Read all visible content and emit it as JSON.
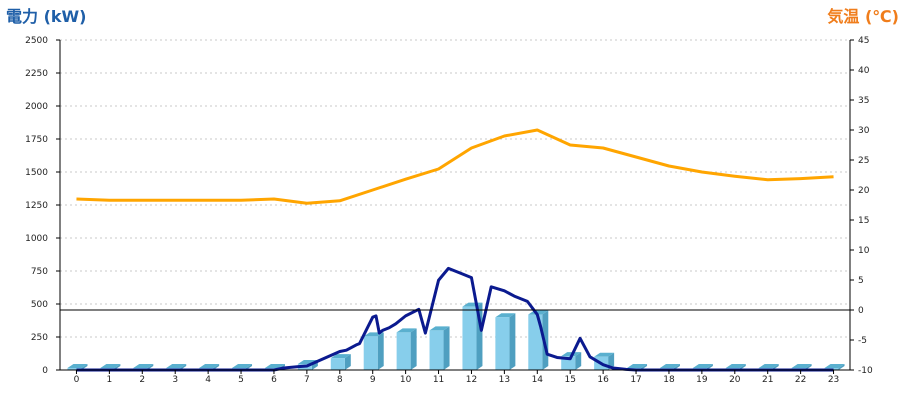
{
  "chart_data": {
    "type": "bar+line",
    "left_axis": {
      "title": "電力 (kW)",
      "color": "#1f5fa8",
      "range": [
        0,
        2500
      ],
      "ticks": [
        "0",
        "250",
        "500",
        "750",
        "1000",
        "1250",
        "1500",
        "1750",
        "2000",
        "2250",
        "2500"
      ]
    },
    "right_axis": {
      "title": "気温 (℃)",
      "color": "#f07d1b",
      "range": [
        -10,
        45
      ],
      "ticks": [
        "-10",
        "-5",
        "0",
        "5",
        "10",
        "15",
        "20",
        "25",
        "30",
        "35",
        "40",
        "45"
      ]
    },
    "x_axis": {
      "range": [
        -0.5,
        23.5
      ],
      "ticks": [
        "0",
        "1",
        "2",
        "3",
        "4",
        "5",
        "6",
        "7",
        "8",
        "9",
        "10",
        "11",
        "12",
        "13",
        "14",
        "15",
        "16",
        "17",
        "18",
        "19",
        "20",
        "21",
        "22",
        "23"
      ]
    },
    "grid": "horizontal dashed",
    "bars": {
      "axis": "left",
      "color": "#87ceeb",
      "categories": [
        "0",
        "1",
        "2",
        "3",
        "4",
        "5",
        "6",
        "7",
        "8",
        "9",
        "10",
        "11",
        "12",
        "13",
        "14",
        "15",
        "16",
        "17",
        "18",
        "19",
        "20",
        "21",
        "22",
        "23"
      ],
      "values": [
        0,
        0,
        0,
        0,
        0,
        0,
        0,
        45,
        90,
        255,
        285,
        300,
        480,
        400,
        420,
        105,
        100,
        0,
        0,
        0,
        0,
        0,
        0,
        0
      ]
    },
    "power_line": {
      "axis": "left",
      "color": "#0b1a8f",
      "x": [
        0,
        1,
        2,
        3,
        4,
        5,
        6,
        6.3,
        6.7,
        7,
        7.5,
        8,
        8.2,
        8.5,
        8.6,
        9,
        9.1,
        9.2,
        9.3,
        9.5,
        9.7,
        10,
        10.4,
        10.6,
        11,
        11.3,
        11.7,
        12,
        12.3,
        12.6,
        13,
        13.3,
        13.7,
        14,
        14.1,
        14.3,
        14.6,
        15,
        15.3,
        15.6,
        16,
        16.3,
        16.7,
        17,
        18,
        19,
        20,
        21,
        22,
        23
      ],
      "y": [
        0,
        0,
        0,
        0,
        0,
        0,
        0,
        15,
        25,
        30,
        85,
        140,
        150,
        190,
        200,
        400,
        410,
        280,
        300,
        320,
        350,
        410,
        460,
        280,
        680,
        770,
        730,
        700,
        300,
        630,
        600,
        560,
        520,
        420,
        330,
        120,
        95,
        85,
        240,
        100,
        40,
        15,
        5,
        0,
        0,
        0,
        0,
        0,
        0,
        0
      ]
    },
    "temperature_line": {
      "axis": "right",
      "color": "#ffa500",
      "x": [
        0,
        1,
        2,
        3,
        4,
        5,
        6,
        7,
        8,
        9,
        10,
        11,
        12,
        13,
        14,
        15,
        16,
        17,
        18,
        19,
        20,
        21,
        22,
        23
      ],
      "y": [
        18.5,
        18.3,
        18.3,
        18.3,
        18.3,
        18.3,
        18.5,
        17.8,
        18.2,
        20.0,
        21.8,
        23.5,
        27.0,
        29.0,
        30.0,
        27.5,
        27.0,
        25.5,
        24.0,
        23.0,
        22.3,
        21.7,
        21.9,
        22.2
      ]
    },
    "reference_line": {
      "axis": "left",
      "value": 455,
      "color": "#000000"
    }
  }
}
